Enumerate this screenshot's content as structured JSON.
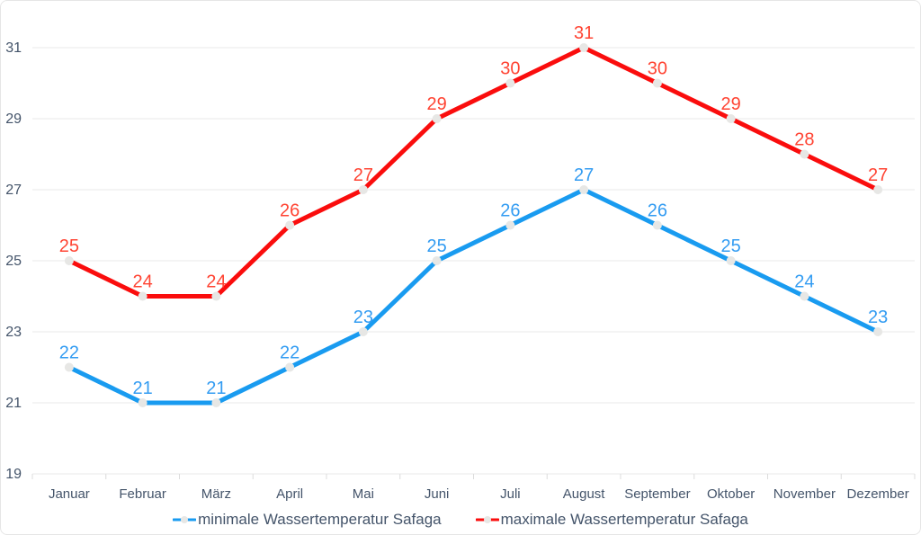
{
  "chart_data": {
    "type": "line",
    "title": "",
    "xlabel": "",
    "ylabel": "",
    "categories": [
      "Januar",
      "Februar",
      "März",
      "April",
      "Mai",
      "Juni",
      "Juli",
      "August",
      "September",
      "Oktober",
      "November",
      "Dezember"
    ],
    "series": [
      {
        "name": "minimale Wassertemperatur Safaga",
        "values": [
          22,
          21,
          21,
          22,
          23,
          25,
          26,
          27,
          26,
          25,
          24,
          23
        ],
        "line_color": "#199bf0",
        "label_color": "#339cf2"
      },
      {
        "name": "maximale Wassertemperatur Safaga",
        "values": [
          25,
          24,
          24,
          26,
          27,
          29,
          30,
          31,
          30,
          29,
          28,
          27
        ],
        "line_color": "#fa0d0d",
        "label_color": "#ff4433"
      }
    ],
    "ylim": [
      19,
      31
    ],
    "yticks": [
      19,
      21,
      23,
      25,
      27,
      29,
      31
    ],
    "grid": true,
    "legend_position": "bottom",
    "colors": {
      "marker_fill": "#e7e7e5",
      "axis_text": "#44546a",
      "gridline": "#e9e9e9",
      "tick": "#dcdcdc"
    }
  }
}
